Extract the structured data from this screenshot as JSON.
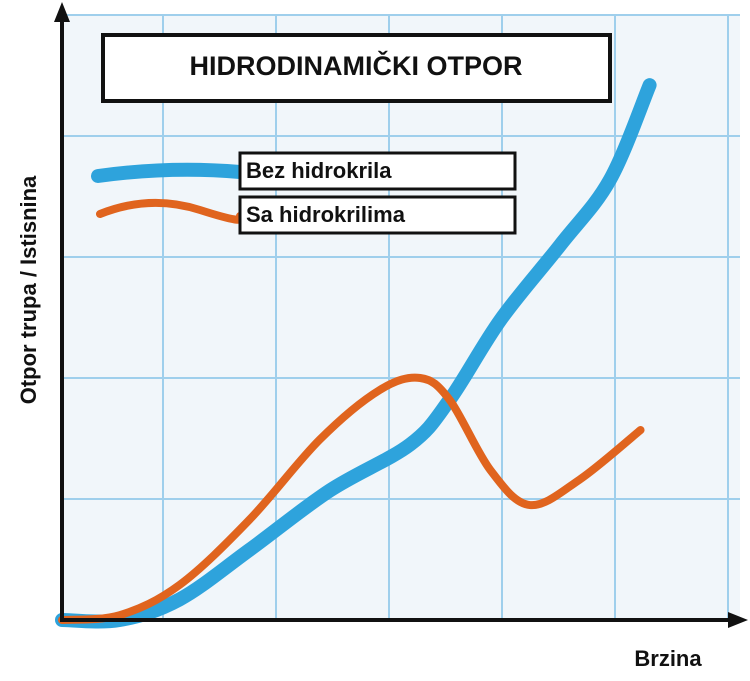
{
  "chart_data": {
    "type": "line",
    "title": "HIDRODINAMIČKI OTPOR",
    "x_label": "Brzina",
    "y_label": "Otpor trupa / Istisnina",
    "xlim": [
      0,
      6
    ],
    "ylim": [
      0,
      5
    ],
    "grid": true,
    "series": [
      {
        "name": "Bez hidrokrila",
        "color": "#2ea3dc",
        "x": [
          0,
          0.51,
          1.04,
          1.66,
          2.37,
          3.08,
          3.43,
          3.88,
          4.41,
          4.85,
          5.2
        ],
        "values": [
          0,
          0,
          0.17,
          0.58,
          1.07,
          1.45,
          1.82,
          2.48,
          3.1,
          3.64,
          4.42
        ]
      },
      {
        "name": "Sa hidrokrilima",
        "color": "#e0641e",
        "x": [
          0,
          0.51,
          1.04,
          1.66,
          2.28,
          2.81,
          3.17,
          3.43,
          3.79,
          4.14,
          4.58,
          5.12
        ],
        "values": [
          0,
          0.04,
          0.29,
          0.83,
          1.49,
          1.9,
          2.0,
          1.82,
          1.24,
          0.95,
          1.16,
          1.57
        ]
      }
    ]
  }
}
